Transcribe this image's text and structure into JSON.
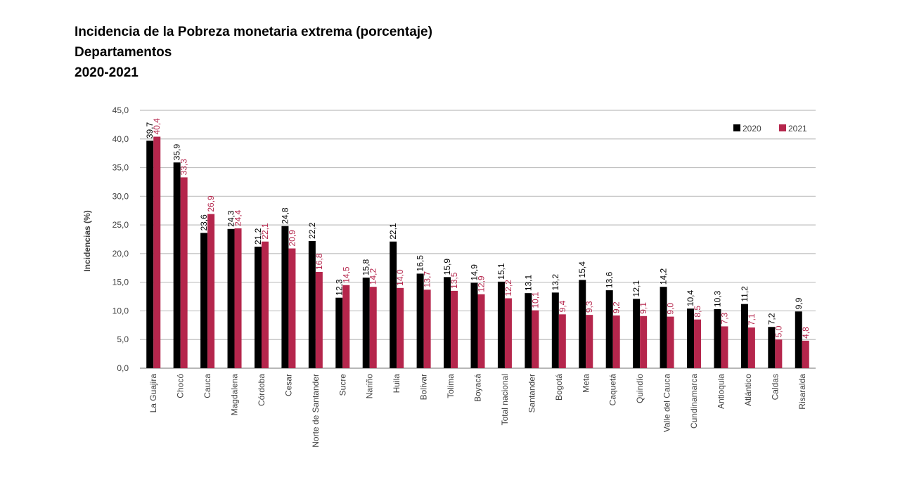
{
  "header": {
    "title": "Incidencia de la Pobreza monetaria extrema (porcentaje)",
    "subtitle": "Departamentos",
    "period": "2020-2021"
  },
  "colors": {
    "series_2020": "#000000",
    "series_2021": "#b5264c",
    "grid": "#bfbfbf",
    "axis_text": "#404040"
  },
  "chart_data": {
    "type": "bar",
    "title": "",
    "xlabel": "",
    "ylabel": "Incidencias (%)",
    "ylim": [
      0,
      45
    ],
    "yticks": [
      "0,0",
      "5,0",
      "10,0",
      "15,0",
      "20,0",
      "25,0",
      "30,0",
      "35,0",
      "40,0",
      "45,0"
    ],
    "grid": true,
    "legend_position": "top-right",
    "categories": [
      "La Guajira",
      "Chocó",
      "Cauca",
      "Magdalena",
      "Córdoba",
      "Cesar",
      "Norte de Santander",
      "Sucre",
      "Nariño",
      "Huila",
      "Bolívar",
      "Tolima",
      "Boyacá",
      "Total nacional",
      "Santander",
      "Bogotá",
      "Meta",
      "Caquetá",
      "Quindío",
      "Valle del Cauca",
      "Cundinamarca",
      "Antioquia",
      "Atlántico",
      "Caldas",
      "Risaralda"
    ],
    "series": [
      {
        "name": "2020",
        "values": [
          39.7,
          35.9,
          23.6,
          24.3,
          21.2,
          24.8,
          22.2,
          12.3,
          15.8,
          22.1,
          16.5,
          15.9,
          14.9,
          15.1,
          13.1,
          13.2,
          15.4,
          13.6,
          12.1,
          14.2,
          10.4,
          10.3,
          11.2,
          7.2,
          9.9
        ],
        "labels": [
          "39,7",
          "35,9",
          "23,6",
          "24,3",
          "21,2",
          "24,8",
          "22,2",
          "12,3",
          "15,8",
          "22,1",
          "16,5",
          "15,9",
          "14,9",
          "15,1",
          "13,1",
          "13,2",
          "15,4",
          "13,6",
          "12,1",
          "14,2",
          "10,4",
          "10,3",
          "11,2",
          "7,2",
          "9,9"
        ]
      },
      {
        "name": "2021",
        "values": [
          40.4,
          33.3,
          26.9,
          24.4,
          22.1,
          20.9,
          16.8,
          14.5,
          14.2,
          14.0,
          13.7,
          13.5,
          12.9,
          12.2,
          10.1,
          9.4,
          9.3,
          9.2,
          9.1,
          9.0,
          8.5,
          7.3,
          7.1,
          5.0,
          4.8
        ],
        "labels": [
          "40,4",
          "33,3",
          "26,9",
          "24,4",
          "22,1",
          "20,9",
          "16,8",
          "14,5",
          "14,2",
          "14,0",
          "13,7",
          "13,5",
          "12,9",
          "12,2",
          "10,1",
          "9,4",
          "9,3",
          "9,2",
          "9,1",
          "9,0",
          "8,5",
          "7,3",
          "7,1",
          "5,0",
          "4,8"
        ]
      }
    ]
  }
}
